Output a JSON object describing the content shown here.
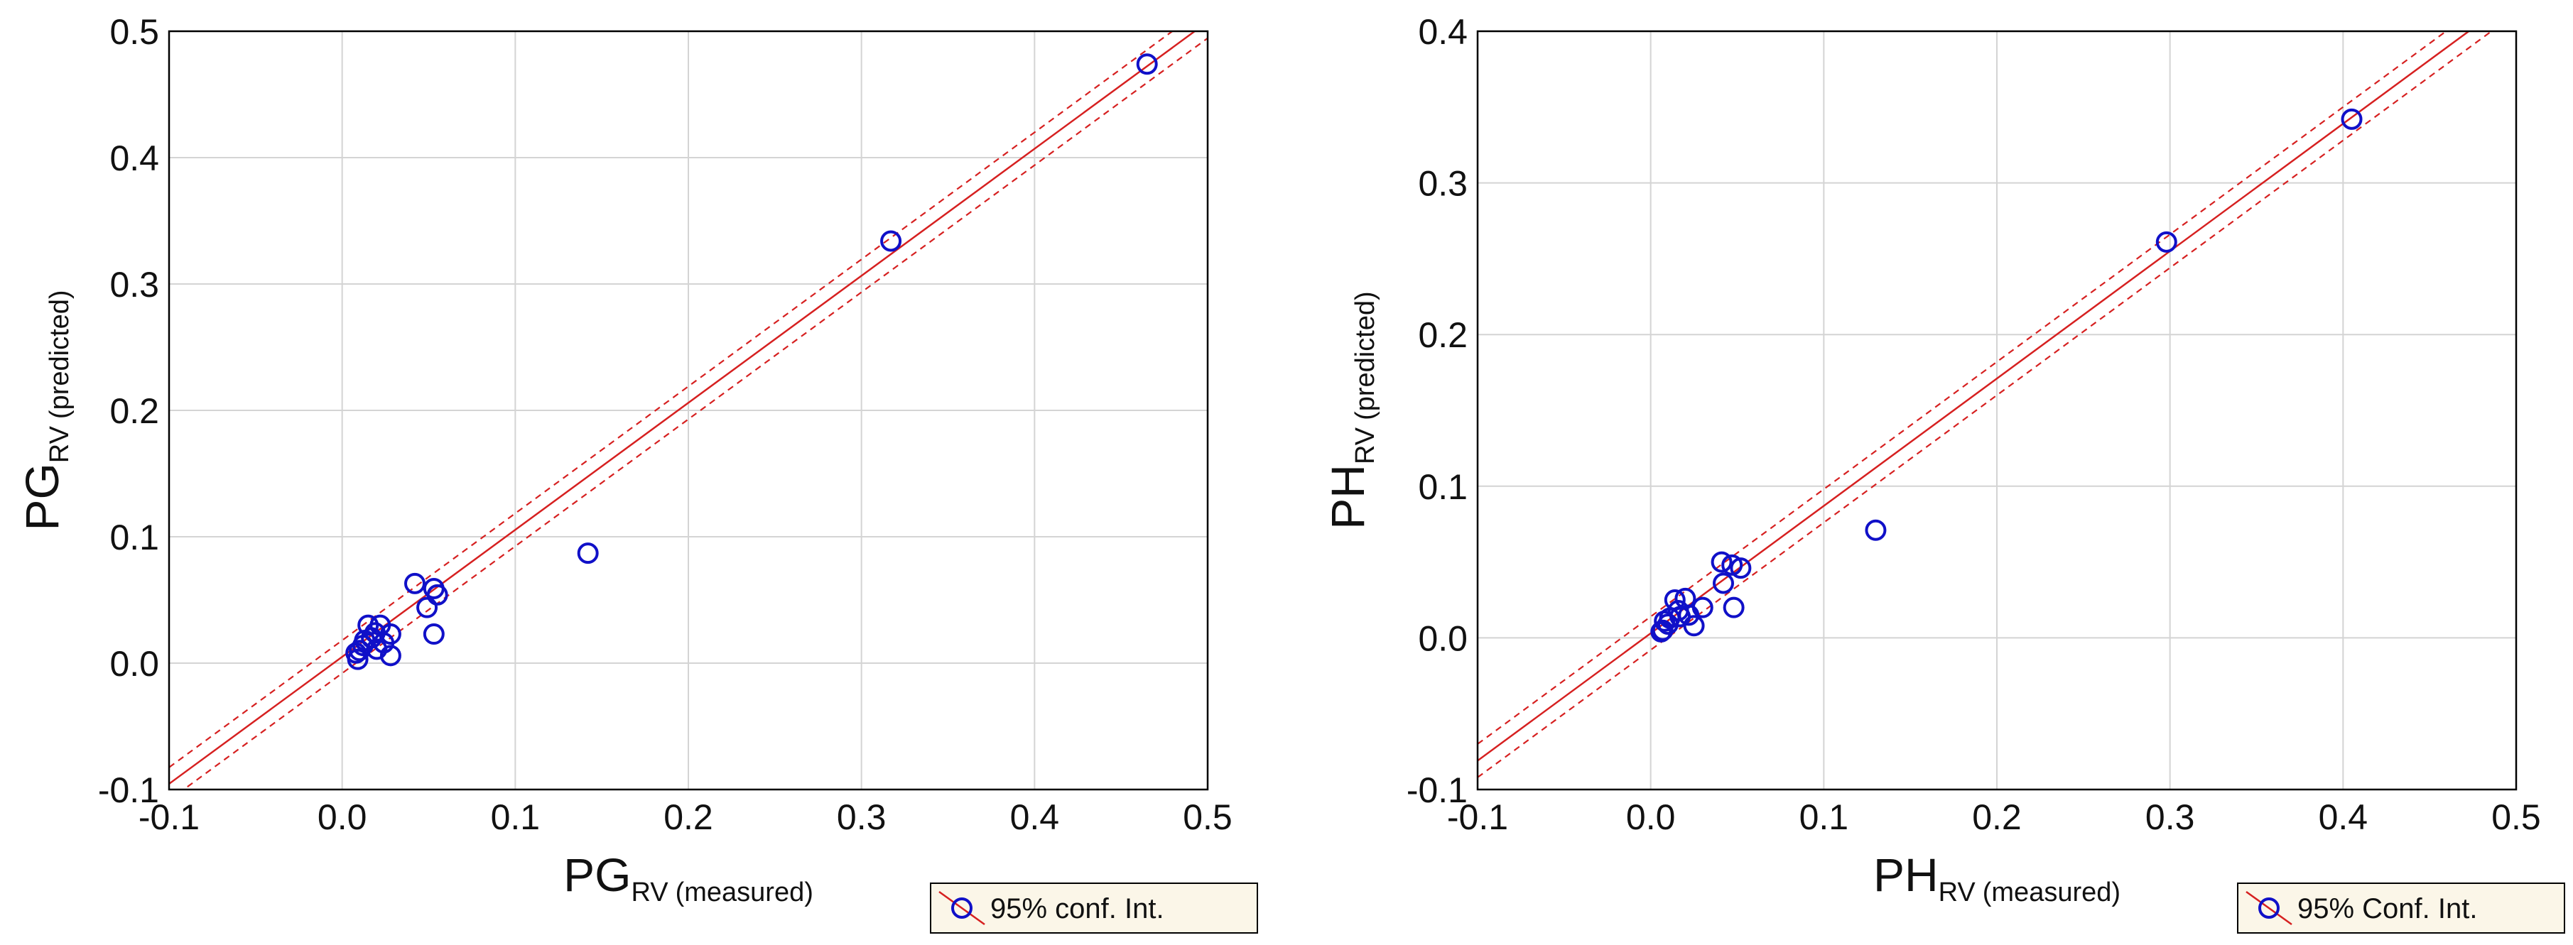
{
  "colors": {
    "point": "#1010c8",
    "fit_line": "#d62020",
    "grid": "#d4d4d4",
    "frame": "#000000",
    "legend_bg": "#fbf6e8"
  },
  "chart_data": [
    {
      "type": "scatter",
      "id": "pg",
      "xlim": [
        -0.1,
        0.5
      ],
      "ylim": [
        -0.1,
        0.5
      ],
      "x_ticks": [
        -0.1,
        0.0,
        0.1,
        0.2,
        0.3,
        0.4,
        0.5
      ],
      "y_ticks": [
        -0.1,
        0.0,
        0.1,
        0.2,
        0.3,
        0.4,
        0.5
      ],
      "x_tick_labels": [
        "-0.1",
        "0.0",
        "0.1",
        "0.2",
        "0.3",
        "0.4",
        "0.5"
      ],
      "y_tick_labels": [
        "-0.1",
        "0.0",
        "0.1",
        "0.2",
        "0.3",
        "0.4",
        "0.5"
      ],
      "grid": true,
      "xlabel_main": "PG",
      "xlabel_sub": "RV",
      "xlabel_note": "(measured)",
      "ylabel_main": "PG",
      "ylabel_sub": "RV",
      "ylabel_note": "(predicted)",
      "legend_label": "95% conf. Int.",
      "legend_position": "below-right",
      "fit": {
        "slope": 1.005,
        "intercept": 0.005
      },
      "ci_half_width": 0.013,
      "series": [
        {
          "name": "observations",
          "x": [
            0.465,
            0.317,
            0.142,
            0.042,
            0.053,
            0.055,
            0.049,
            0.053,
            0.028,
            0.028,
            0.015,
            0.022,
            0.019,
            0.02,
            0.013,
            0.012,
            0.01,
            0.008,
            0.009,
            0.024,
            0.017
          ],
          "y": [
            0.474,
            0.334,
            0.087,
            0.063,
            0.059,
            0.054,
            0.044,
            0.023,
            0.023,
            0.006,
            0.03,
            0.03,
            0.024,
            0.011,
            0.018,
            0.014,
            0.01,
            0.008,
            0.003,
            0.016,
            0.02
          ]
        }
      ]
    },
    {
      "type": "scatter",
      "id": "ph",
      "xlim": [
        -0.1,
        0.5
      ],
      "ylim": [
        -0.1,
        0.4
      ],
      "x_ticks": [
        -0.1,
        0.0,
        0.1,
        0.2,
        0.3,
        0.4,
        0.5
      ],
      "y_ticks": [
        -0.1,
        0.0,
        0.1,
        0.2,
        0.3,
        0.4
      ],
      "x_tick_labels": [
        "-0.1",
        "0.0",
        "0.1",
        "0.2",
        "0.3",
        "0.4",
        "0.5"
      ],
      "y_tick_labels": [
        "-0.1",
        "0.0",
        "0.1",
        "0.2",
        "0.3",
        "0.4"
      ],
      "grid": true,
      "xlabel_main": "PH",
      "xlabel_sub": "RV",
      "xlabel_note": "(measured)",
      "ylabel_main": "PH",
      "ylabel_sub": "RV",
      "ylabel_note": "(predicted)",
      "legend_label": "95% Conf. Int.",
      "legend_position": "below-right",
      "fit": {
        "slope": 0.84,
        "intercept": 0.003
      },
      "ci_half_width": 0.011,
      "series": [
        {
          "name": "observations",
          "x": [
            0.405,
            0.298,
            0.13,
            0.041,
            0.047,
            0.052,
            0.042,
            0.048,
            0.03,
            0.025,
            0.02,
            0.014,
            0.016,
            0.017,
            0.011,
            0.01,
            0.008,
            0.007,
            0.006,
            0.022
          ],
          "y": [
            0.342,
            0.261,
            0.071,
            0.05,
            0.048,
            0.046,
            0.036,
            0.02,
            0.02,
            0.008,
            0.026,
            0.025,
            0.018,
            0.014,
            0.013,
            0.009,
            0.011,
            0.005,
            0.004,
            0.015
          ]
        }
      ]
    }
  ]
}
